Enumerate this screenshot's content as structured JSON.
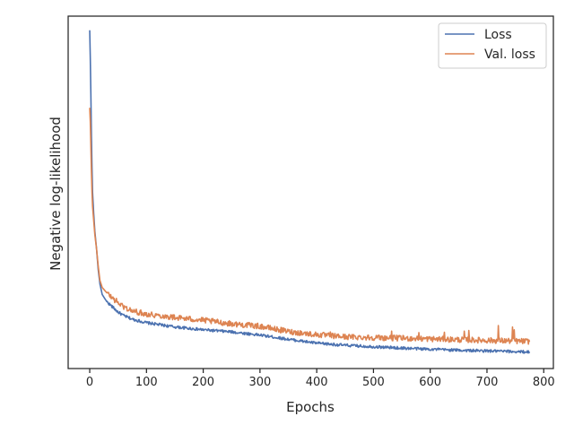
{
  "chart_data": {
    "type": "line",
    "title": "",
    "xlabel": "Epochs",
    "ylabel": "Negative log-likelihood",
    "xlim": [
      -38,
      817
    ],
    "ylim": [
      0,
      1
    ],
    "y_tick_labels_shown": false,
    "grid": false,
    "legend_position": "top-right",
    "x_ticks": [
      0,
      100,
      200,
      300,
      400,
      500,
      600,
      700,
      800
    ],
    "x_tick_labels": [
      "0",
      "100",
      "200",
      "300",
      "400",
      "500",
      "600",
      "700",
      "800"
    ],
    "series": [
      {
        "name": "Loss",
        "color": "#4c72b0",
        "points": [
          [
            0,
            0.96
          ],
          [
            1,
            0.88
          ],
          [
            2,
            0.78
          ],
          [
            3,
            0.66
          ],
          [
            4,
            0.57
          ],
          [
            5,
            0.5
          ],
          [
            7,
            0.44
          ],
          [
            9,
            0.39
          ],
          [
            12,
            0.34
          ],
          [
            15,
            0.28
          ],
          [
            18,
            0.24
          ],
          [
            22,
            0.21
          ],
          [
            30,
            0.19
          ],
          [
            40,
            0.175
          ],
          [
            50,
            0.16
          ],
          [
            60,
            0.15
          ],
          [
            75,
            0.14
          ],
          [
            100,
            0.13
          ],
          [
            150,
            0.118
          ],
          [
            200,
            0.11
          ],
          [
            250,
            0.104
          ],
          [
            300,
            0.095
          ],
          [
            350,
            0.083
          ],
          [
            400,
            0.072
          ],
          [
            450,
            0.066
          ],
          [
            500,
            0.062
          ],
          [
            550,
            0.058
          ],
          [
            600,
            0.055
          ],
          [
            650,
            0.052
          ],
          [
            700,
            0.05
          ],
          [
            750,
            0.048
          ],
          [
            775,
            0.047
          ]
        ],
        "noise": 0.004
      },
      {
        "name": "Val. loss",
        "color": "#dd8452",
        "points": [
          [
            0,
            0.74
          ],
          [
            1,
            0.7
          ],
          [
            2,
            0.63
          ],
          [
            3,
            0.56
          ],
          [
            4,
            0.5
          ],
          [
            5,
            0.46
          ],
          [
            7,
            0.42
          ],
          [
            9,
            0.38
          ],
          [
            12,
            0.34
          ],
          [
            15,
            0.29
          ],
          [
            18,
            0.25
          ],
          [
            22,
            0.23
          ],
          [
            30,
            0.215
          ],
          [
            40,
            0.2
          ],
          [
            50,
            0.187
          ],
          [
            60,
            0.175
          ],
          [
            75,
            0.163
          ],
          [
            100,
            0.155
          ],
          [
            150,
            0.145
          ],
          [
            200,
            0.137
          ],
          [
            250,
            0.127
          ],
          [
            300,
            0.12
          ],
          [
            350,
            0.105
          ],
          [
            400,
            0.096
          ],
          [
            450,
            0.09
          ],
          [
            500,
            0.088
          ],
          [
            550,
            0.086
          ],
          [
            600,
            0.084
          ],
          [
            650,
            0.082
          ],
          [
            700,
            0.08
          ],
          [
            750,
            0.078
          ],
          [
            775,
            0.077
          ]
        ],
        "noise": 0.008,
        "spikes": [
          [
            345,
            0.112
          ],
          [
            424,
            0.104
          ],
          [
            532,
            0.106
          ],
          [
            580,
            0.102
          ],
          [
            625,
            0.103
          ],
          [
            660,
            0.106
          ],
          [
            668,
            0.108
          ],
          [
            720,
            0.122
          ],
          [
            745,
            0.118
          ],
          [
            748,
            0.11
          ]
        ]
      }
    ]
  }
}
